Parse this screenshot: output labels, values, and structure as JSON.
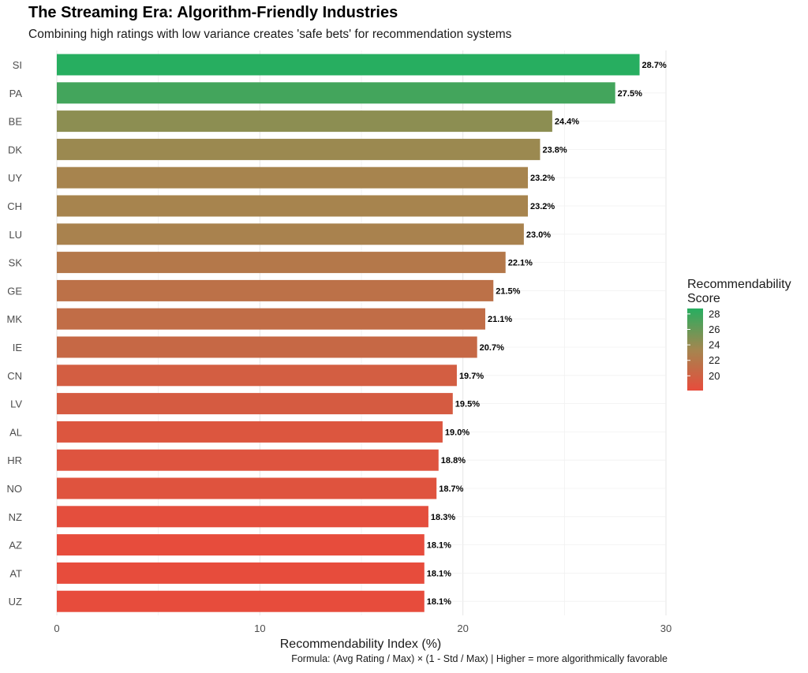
{
  "chart_data": {
    "type": "bar",
    "orientation": "horizontal",
    "title": "The Streaming Era: Algorithm-Friendly Industries",
    "subtitle": "Combining high ratings with low variance creates 'safe bets' for recommendation systems",
    "caption": "Formula: (Avg Rating / Max) × (1 - Std / Max) | Higher = more algorithmically favorable",
    "xlabel": "Recommendability Index (%)",
    "ylabel": "",
    "xlim": [
      0,
      30
    ],
    "xticks": [
      0,
      10,
      20,
      30
    ],
    "grid": true,
    "categories": [
      "SI",
      "PA",
      "BE",
      "DK",
      "UY",
      "CH",
      "LU",
      "SK",
      "GE",
      "MK",
      "IE",
      "CN",
      "LV",
      "AL",
      "HR",
      "NO",
      "NZ",
      "AZ",
      "AT",
      "UZ"
    ],
    "values": [
      28.7,
      27.5,
      24.4,
      23.8,
      23.2,
      23.2,
      23.0,
      22.1,
      21.5,
      21.1,
      20.7,
      19.7,
      19.5,
      19.0,
      18.8,
      18.7,
      18.3,
      18.1,
      18.1,
      18.1
    ],
    "value_labels": [
      "28.7%",
      "27.5%",
      "24.4%",
      "23.8%",
      "23.2%",
      "23.2%",
      "23.0%",
      "22.1%",
      "21.5%",
      "21.1%",
      "20.7%",
      "19.7%",
      "19.5%",
      "19.0%",
      "18.8%",
      "18.7%",
      "18.3%",
      "18.1%",
      "18.1%",
      "18.1%"
    ],
    "legend": {
      "title_line1": "Recommendability",
      "title_line2": "Score",
      "ticks": [
        28,
        26,
        24,
        22,
        20
      ],
      "range": [
        18.1,
        28.7
      ],
      "low_color": "#E74C3C",
      "mid_color": "#A4864F",
      "high_color": "#27AE60",
      "placement": "right"
    }
  }
}
